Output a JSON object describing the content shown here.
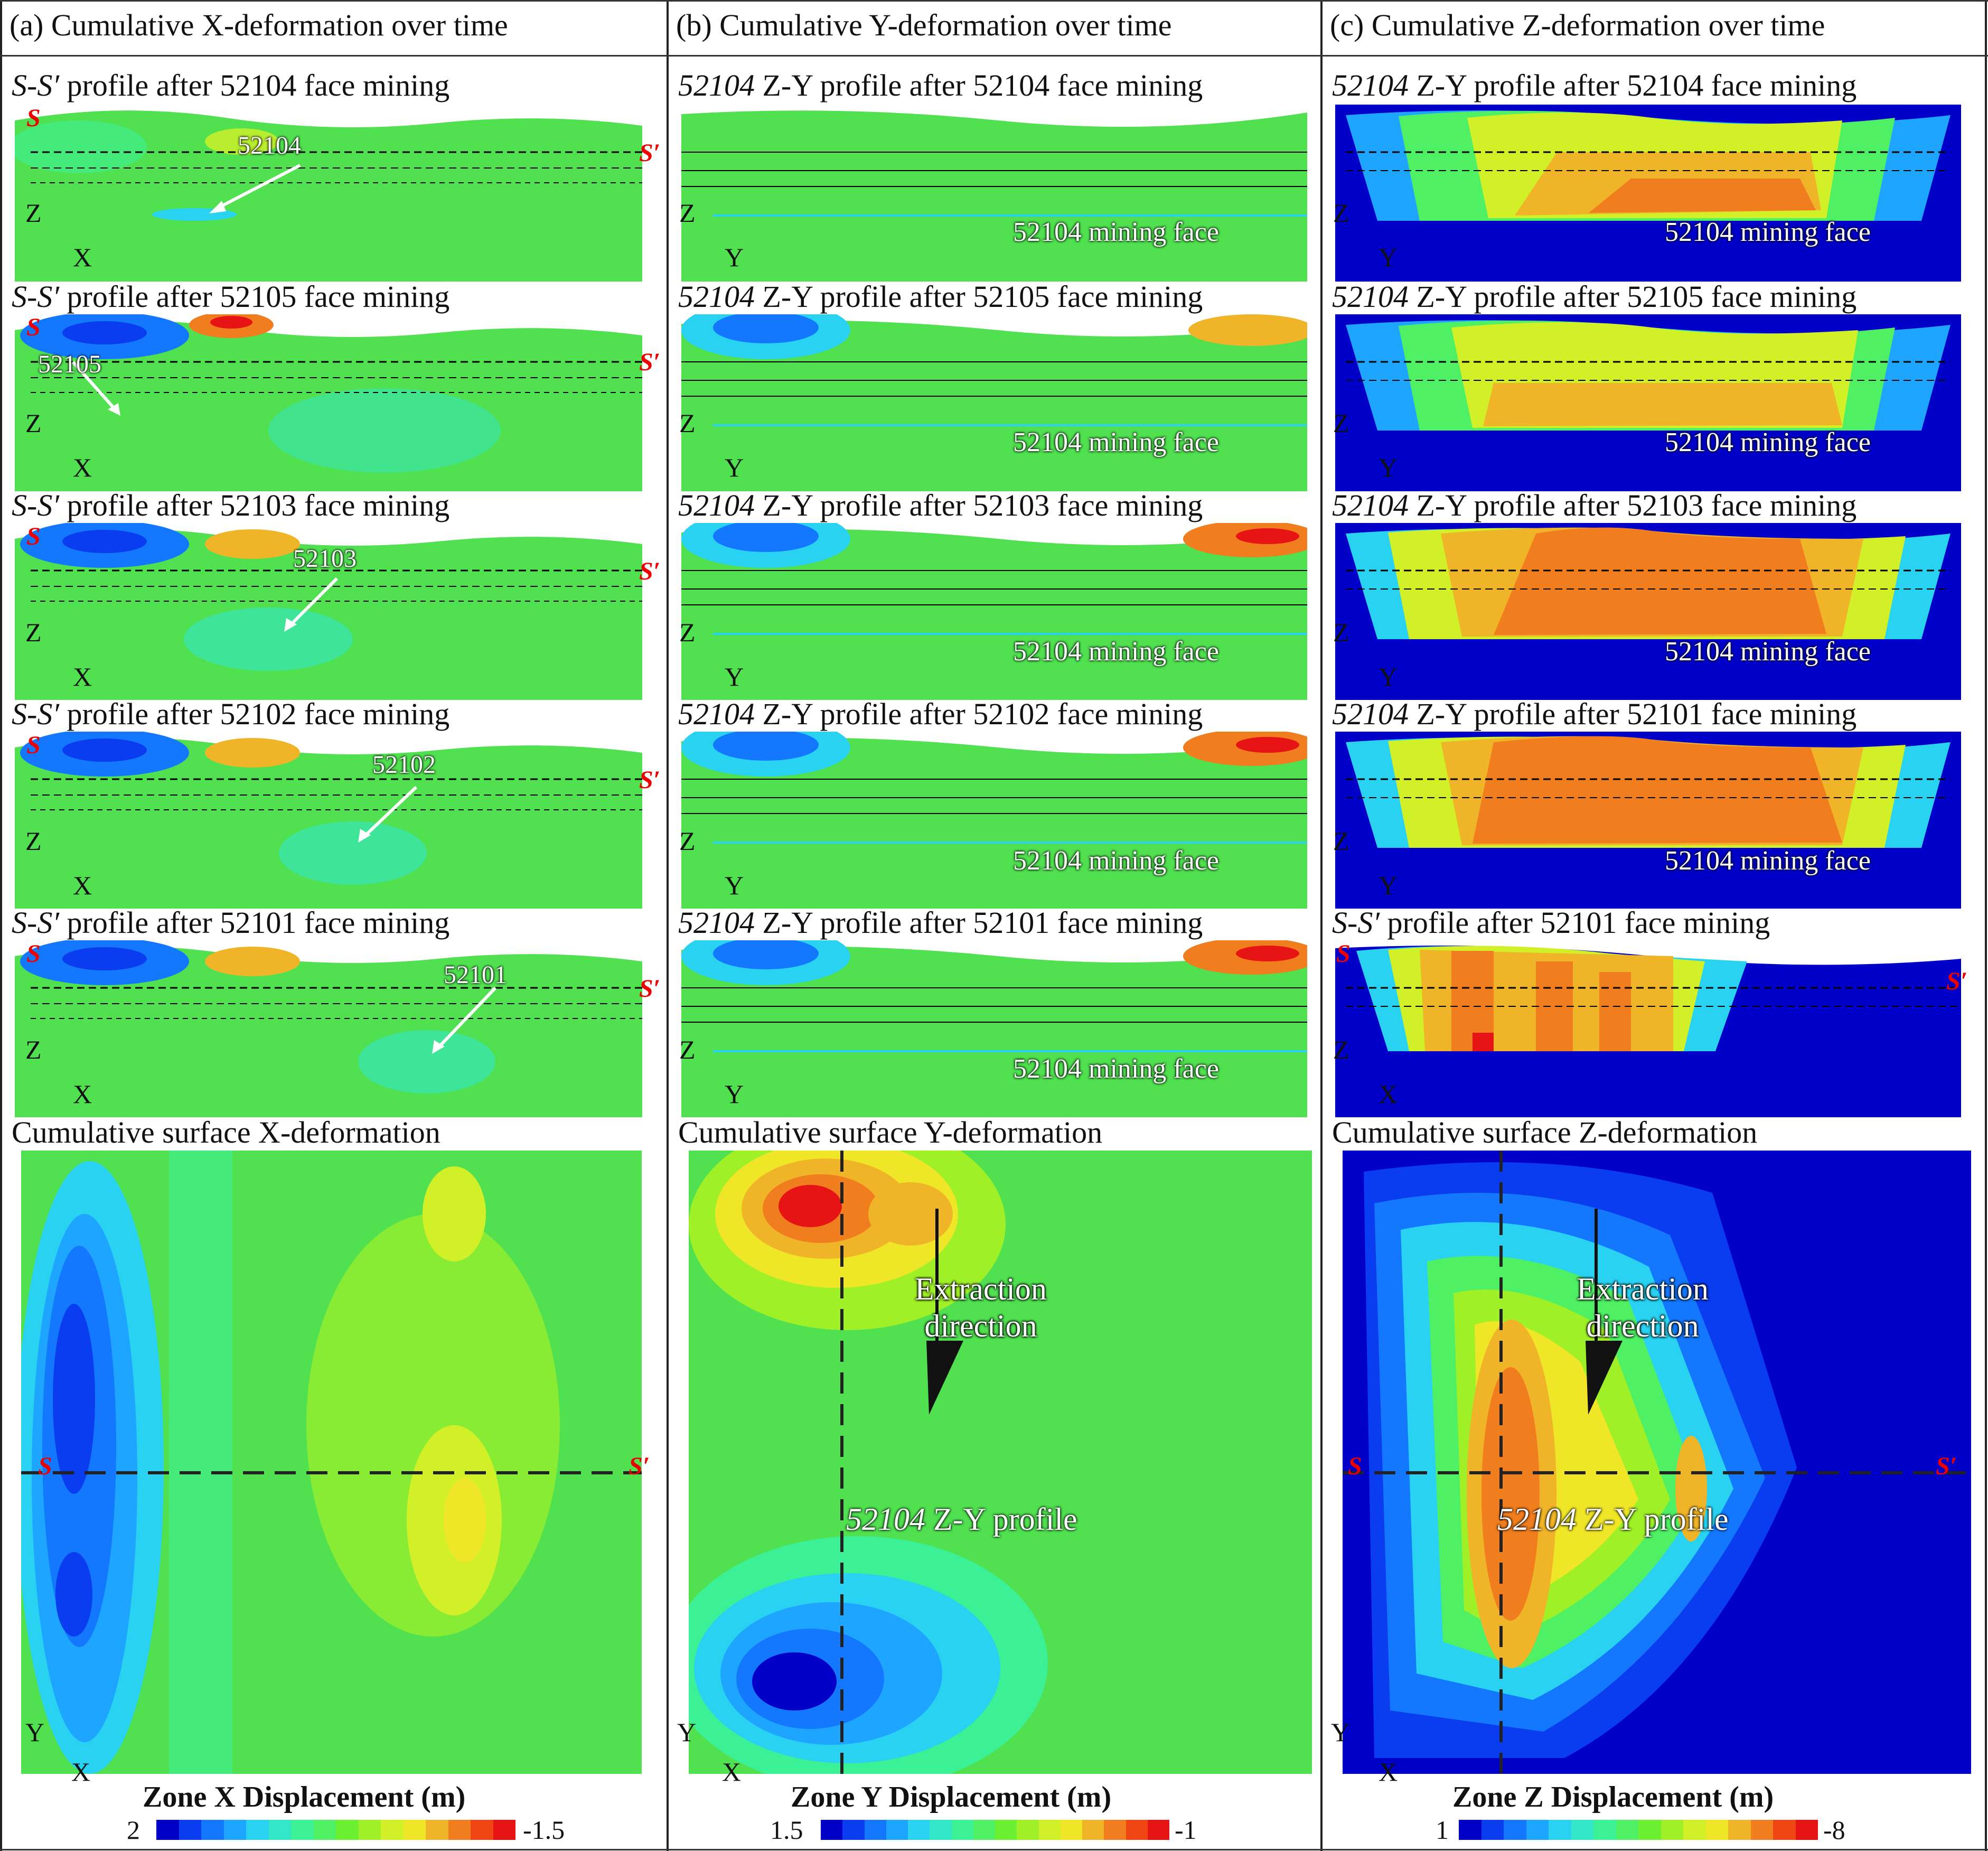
{
  "columns": [
    {
      "header": "(a) Cumulative X-deformation  over time",
      "axis": "X",
      "profiles": [
        {
          "title_it": "S-S′",
          "title_rest": " profile after 52104 face mining",
          "tag": "52104"
        },
        {
          "title_it": "S-S′",
          "title_rest": " profile after 52105 face mining",
          "tag": "52105"
        },
        {
          "title_it": "S-S′",
          "title_rest": " profile after 52103 face mining",
          "tag": "52103"
        },
        {
          "title_it": "S-S′",
          "title_rest": " profile after 52102 face mining",
          "tag": "52102"
        },
        {
          "title_it": "S-S′",
          "title_rest": " profile after 52101 face mining",
          "tag": "52101"
        }
      ],
      "surface_title": "Cumulative surface X-deformation",
      "legend": {
        "title": "Zone X Displacement (m)",
        "min": "2",
        "max": "-1.5"
      }
    },
    {
      "header": "(b) Cumulative Y-deformation  over time",
      "axis": "Y",
      "profiles": [
        {
          "title_it": "52104",
          "title_rest": " Z-Y profile after 52104 face mining"
        },
        {
          "title_it": "52104",
          "title_rest": " Z-Y profile after 52105 face mining"
        },
        {
          "title_it": "52104",
          "title_rest": " Z-Y profile after 52103 face mining"
        },
        {
          "title_it": "52104",
          "title_rest": " Z-Y profile after 52102 face mining"
        },
        {
          "title_it": "52104",
          "title_rest": " Z-Y profile after 52101 face mining"
        }
      ],
      "surface_title": "Cumulative surface Y-deformation",
      "legend": {
        "title": "Zone Y Displacement (m)",
        "min": "1.5",
        "max": "-1"
      }
    },
    {
      "header": "(c) Cumulative Z-deformation  over time",
      "axis": "Y",
      "profiles": [
        {
          "title_it": "52104",
          "title_rest": " Z-Y profile after 52104 face mining"
        },
        {
          "title_it": "52104",
          "title_rest": " Z-Y profile after 52105 face mining"
        },
        {
          "title_it": "52104",
          "title_rest": " Z-Y profile after 52103 face mining"
        },
        {
          "title_it": "52104",
          "title_rest": " Z-Y profile after 52101 face mining"
        },
        {
          "title_it": "S-S′",
          "title_rest": " profile after 52101 face mining"
        }
      ],
      "surface_title": "Cumulative surface Z-deformation",
      "legend": {
        "title": "Zone Z Displacement (m)",
        "min": "1",
        "max": "-8"
      }
    }
  ],
  "labels": {
    "mining_face": "52104 mining face",
    "z": "Z",
    "x": "X",
    "y": "Y",
    "s": "S",
    "s_prime": "S′",
    "extraction": "Extraction direction",
    "zy_profile_it": "52104",
    "zy_profile_rest": " Z-Y profile"
  },
  "colormap": [
    "#0000c8",
    "#0a3cf0",
    "#1478ff",
    "#1ea5ff",
    "#28d2f0",
    "#32e6c8",
    "#3cf096",
    "#50f064",
    "#6ef032",
    "#a0f028",
    "#d2f028",
    "#f0e628",
    "#f0b428",
    "#f07d1e",
    "#f04614",
    "#e61414"
  ]
}
